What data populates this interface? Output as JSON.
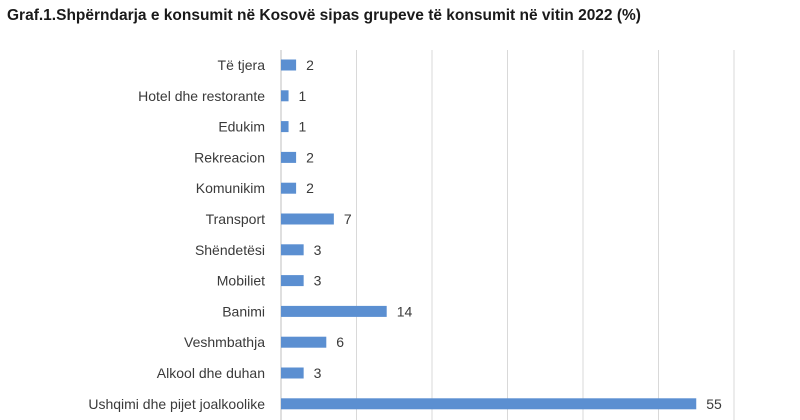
{
  "chart_data": {
    "type": "bar",
    "orientation": "horizontal",
    "title": "Graf.1.Shpërndarja e konsumit në Kosovë sipas grupeve të konsumit në vitin 2022 (%)",
    "categories": [
      "Të tjera",
      "Hotel dhe restorante",
      "Edukim",
      "Rekreacion",
      "Komunikim",
      "Transport",
      "Shëndetësi",
      "Mobiliet",
      "Banimi",
      "Veshmbathja",
      "Alkool dhe duhan",
      "Ushqimi dhe pijet joalkoolike"
    ],
    "values": [
      2,
      1,
      1,
      2,
      2,
      7,
      3,
      3,
      14,
      6,
      3,
      55
    ],
    "value_labels": [
      "2",
      "1",
      "1",
      "2",
      "2",
      "7",
      "3",
      "3",
      "14",
      "6",
      "3",
      "55"
    ],
    "xlim": [
      0,
      60
    ],
    "grid": true,
    "bar_color": "#5b8fd1"
  }
}
